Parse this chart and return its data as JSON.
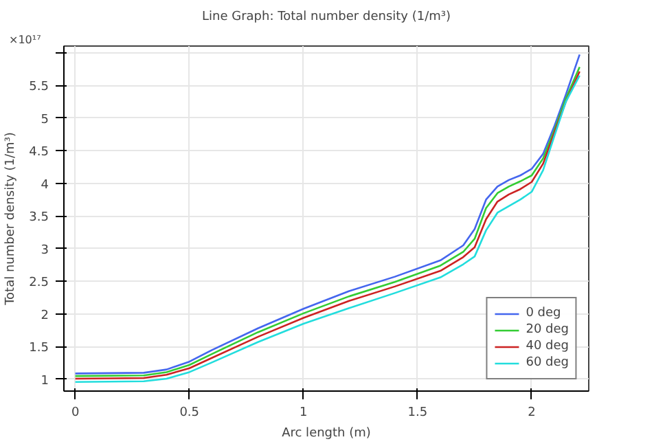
{
  "chart_data": {
    "type": "line",
    "title": "Line Graph: Total number density (1/m³)",
    "xlabel": "Arc length (m)",
    "ylabel": "Total number density (1/m³)",
    "annotations": [
      "×10¹⁷"
    ],
    "x": [
      0,
      0.3,
      0.4,
      0.5,
      0.6,
      0.8,
      1.0,
      1.2,
      1.4,
      1.6,
      1.7,
      1.75,
      1.8,
      1.85,
      1.9,
      1.95,
      2.0,
      2.05,
      2.1,
      2.15,
      2.21
    ],
    "series": [
      {
        "name": "0 deg",
        "color": "#4466ee",
        "values": [
          1.09,
          1.1,
          1.15,
          1.27,
          1.45,
          1.78,
          2.08,
          2.35,
          2.57,
          2.82,
          3.05,
          3.3,
          3.75,
          3.95,
          4.05,
          4.12,
          4.22,
          4.45,
          4.88,
          5.36,
          5.97
        ]
      },
      {
        "name": "20 deg",
        "color": "#33cc33",
        "values": [
          1.05,
          1.06,
          1.11,
          1.22,
          1.39,
          1.72,
          2.01,
          2.27,
          2.49,
          2.74,
          2.95,
          3.15,
          3.62,
          3.85,
          3.95,
          4.03,
          4.12,
          4.38,
          4.82,
          5.3,
          5.78
        ]
      },
      {
        "name": "40 deg",
        "color": "#cc2222",
        "values": [
          1.01,
          1.02,
          1.07,
          1.17,
          1.33,
          1.65,
          1.94,
          2.2,
          2.42,
          2.66,
          2.87,
          3.02,
          3.45,
          3.72,
          3.83,
          3.91,
          4.02,
          4.3,
          4.78,
          5.25,
          5.71
        ]
      },
      {
        "name": "60 deg",
        "color": "#22dddd",
        "values": [
          0.96,
          0.97,
          1.01,
          1.11,
          1.26,
          1.57,
          1.85,
          2.09,
          2.32,
          2.56,
          2.76,
          2.88,
          3.28,
          3.55,
          3.65,
          3.75,
          3.87,
          4.2,
          4.73,
          5.25,
          5.65
        ]
      }
    ],
    "xlim": [
      -0.05,
      2.25
    ],
    "xticks": [
      0,
      0.5,
      1,
      1.5,
      2
    ],
    "ylim": [
      0.82,
      6.1
    ],
    "yticks": [
      1,
      1.5,
      2,
      2.5,
      3,
      3.5,
      4,
      4.5,
      5,
      5.5,
      {
        "value": 6,
        "label": null
      }
    ],
    "grid": true,
    "legend": "bottom right",
    "line_style": "solid",
    "marker": "none"
  }
}
